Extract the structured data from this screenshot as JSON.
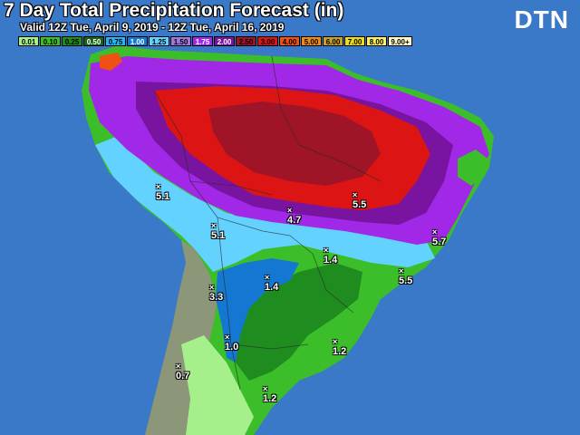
{
  "header": {
    "title": "7 Day Total Precipitation Forecast (in)",
    "valid": "Valid 12Z Tue, April 9, 2019 - 12Z Tue, April 16, 2019",
    "logo": "DTN"
  },
  "legend": [
    {
      "label": "0.01",
      "color": "#a6f08c",
      "text": "#000000"
    },
    {
      "label": "0.10",
      "color": "#3cbe2a",
      "text": "#000000"
    },
    {
      "label": "0.25",
      "color": "#1e8c1e",
      "text": "#000000"
    },
    {
      "label": "0.50",
      "color": "#146414",
      "text": "#ffffff"
    },
    {
      "label": "0.75",
      "color": "#28b4f0",
      "text": "#000000"
    },
    {
      "label": "1.00",
      "color": "#1478d2",
      "text": "#ffffff"
    },
    {
      "label": "1.25",
      "color": "#64d2ff",
      "text": "#000000"
    },
    {
      "label": "1.50",
      "color": "#a078dc",
      "text": "#000000"
    },
    {
      "label": "1.75",
      "color": "#a028e6",
      "text": "#ffffff"
    },
    {
      "label": "2.00",
      "color": "#7814a0",
      "text": "#ffffff"
    },
    {
      "label": "2.50",
      "color": "#a01428",
      "text": "#000000"
    },
    {
      "label": "3.00",
      "color": "#dc1414",
      "text": "#000000"
    },
    {
      "label": "4.00",
      "color": "#f05014",
      "text": "#000000"
    },
    {
      "label": "5.00",
      "color": "#f08c14",
      "text": "#000000"
    },
    {
      "label": "6.00",
      "color": "#c8a028",
      "text": "#000000"
    },
    {
      "label": "7.00",
      "color": "#f0dc14",
      "text": "#000000"
    },
    {
      "label": "8.00",
      "color": "#fff064",
      "text": "#000000"
    },
    {
      "label": "9.00+",
      "color": "#fffac8",
      "text": "#000000"
    }
  ],
  "map": {
    "ocean_color": "#3a78c8",
    "no_rain_color": "#8c9678",
    "markers": [
      {
        "id": "m1",
        "value": "5.1"
      },
      {
        "id": "m2",
        "value": "5.1"
      },
      {
        "id": "m3",
        "value": "4.7"
      },
      {
        "id": "m4",
        "value": "5.5"
      },
      {
        "id": "m5",
        "value": "5.7"
      },
      {
        "id": "m6",
        "value": "1.4"
      },
      {
        "id": "m7",
        "value": "5.5"
      },
      {
        "id": "m8",
        "value": "1.4"
      },
      {
        "id": "m9",
        "value": "3.3"
      },
      {
        "id": "m10",
        "value": "1.0"
      },
      {
        "id": "m11",
        "value": "1.2"
      },
      {
        "id": "m12",
        "value": "0.7"
      },
      {
        "id": "m13",
        "value": "1.2"
      }
    ]
  }
}
